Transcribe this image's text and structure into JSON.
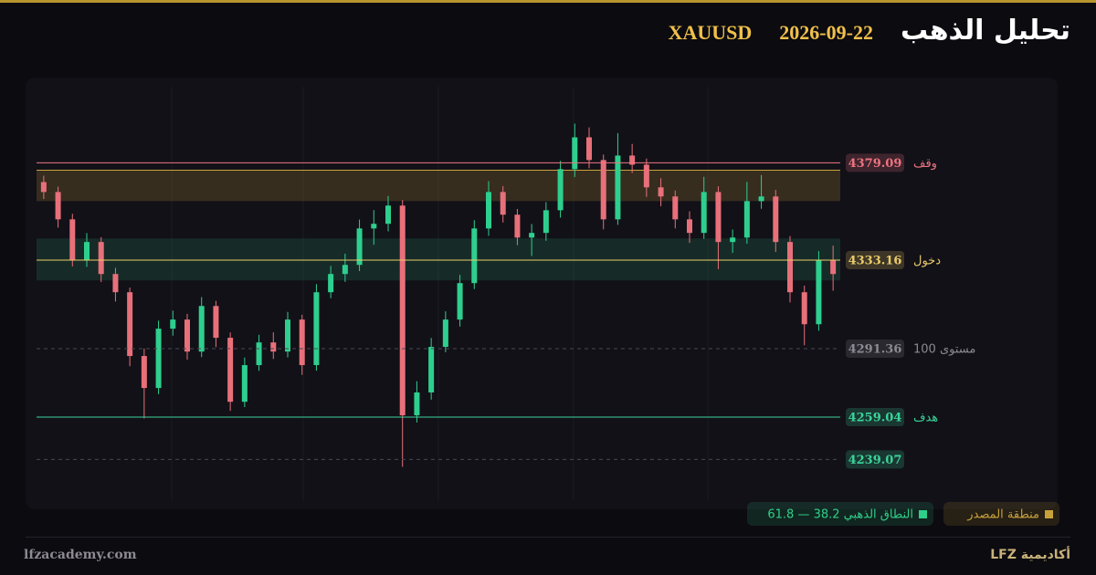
{
  "header": {
    "title": "تحليل الذهب",
    "date": "2026-09-22",
    "symbol": "XAUUSD"
  },
  "chart_data": {
    "type": "candlestick",
    "ylim": [
      4219,
      4415
    ],
    "up_color": "#2ecf8e",
    "down_color": "#e8707a",
    "open": [
      4370.0,
      4365.3,
      4352.4,
      4333.1,
      4341.7,
      4326.6,
      4318.0,
      4287.9,
      4272.8,
      4300.8,
      4305.1,
      4290.0,
      4311.5,
      4296.5,
      4266.3,
      4283.6,
      4294.3,
      4290.0,
      4305.1,
      4283.6,
      4318.0,
      4326.6,
      4330.9,
      4348.1,
      4350.3,
      4358.9,
      4259.9,
      4270.7,
      4292.2,
      4305.1,
      4322.3,
      4348.1,
      4365.3,
      4354.6,
      4343.8,
      4346.0,
      4356.7,
      4376.1,
      4391.1,
      4380.4,
      4352.4,
      4382.5,
      4378.2,
      4367.5,
      4363.2,
      4352.4,
      4346.0,
      4365.3,
      4341.7,
      4343.8,
      4361.0,
      4363.2,
      4341.7,
      4318.0,
      4302.9,
      4333.1
    ],
    "high": [
      4373.0,
      4367.8,
      4355.0,
      4345.9,
      4344.0,
      4329.5,
      4320.2,
      4291.4,
      4304.6,
      4309.3,
      4307.8,
      4315.7,
      4313.9,
      4299.0,
      4287.2,
      4297.9,
      4299.1,
      4308.7,
      4307.4,
      4321.8,
      4330.4,
      4336.2,
      4352.3,
      4356.8,
      4363.4,
      4361.5,
      4276.0,
      4296.4,
      4309.0,
      4326.2,
      4352.0,
      4370.4,
      4368.1,
      4357.3,
      4350.2,
      4360.5,
      4380.0,
      4397.6,
      4395.8,
      4383.0,
      4393.1,
      4388.0,
      4381.1,
      4371.8,
      4366.0,
      4356.2,
      4372.5,
      4368.0,
      4347.6,
      4370.1,
      4373.3,
      4366.3,
      4344.5,
      4321.1,
      4337.4,
      4340.0
    ],
    "low": [
      4362.0,
      4348.5,
      4330.2,
      4330.0,
      4322.8,
      4313.6,
      4283.1,
      4258.4,
      4269.9,
      4297.5,
      4286.2,
      4287.4,
      4292.1,
      4262.0,
      4263.8,
      4280.9,
      4286.5,
      4287.2,
      4279.0,
      4281.0,
      4315.2,
      4322.9,
      4328.0,
      4340.4,
      4346.7,
      4235.6,
      4256.5,
      4267.3,
      4289.7,
      4301.8,
      4319.5,
      4344.6,
      4350.9,
      4340.2,
      4335.1,
      4342.3,
      4353.2,
      4372.4,
      4376.5,
      4347.7,
      4349.8,
      4374.3,
      4363.0,
      4358.6,
      4348.1,
      4341.3,
      4343.2,
      4328.9,
      4336.6,
      4340.9,
      4357.4,
      4337.0,
      4313.2,
      4293.0,
      4299.8,
      4318.7
    ],
    "close": [
      4365.3,
      4352.4,
      4333.1,
      4341.7,
      4326.6,
      4318.0,
      4287.9,
      4272.8,
      4300.8,
      4305.1,
      4290.0,
      4311.5,
      4296.5,
      4266.3,
      4283.6,
      4294.3,
      4290.0,
      4305.1,
      4283.6,
      4318.0,
      4326.6,
      4330.9,
      4348.1,
      4350.3,
      4358.9,
      4259.9,
      4270.7,
      4292.2,
      4305.1,
      4322.3,
      4348.1,
      4365.3,
      4354.6,
      4343.8,
      4346.0,
      4356.7,
      4376.1,
      4391.1,
      4380.4,
      4352.4,
      4382.5,
      4378.2,
      4367.5,
      4363.2,
      4352.4,
      4346.0,
      4365.3,
      4341.7,
      4343.8,
      4361.0,
      4363.2,
      4341.7,
      4318.0,
      4302.9,
      4333.1,
      4326.6
    ],
    "zones": [
      {
        "name": "منطقة المصدر",
        "color": "#c9a13a",
        "range": [
          4361.0,
          4375.6
        ]
      },
      {
        "name": "النطاق الذهبي 38.2 — 61.8",
        "color": "#2fd08a",
        "range": [
          4323.6,
          4343.4
        ]
      }
    ],
    "levels": [
      {
        "name": "وقف",
        "value": 4379.09,
        "color": "#ee7480",
        "style": "solid"
      },
      {
        "name": "دخول",
        "value": 4333.16,
        "color": "#eccb6a",
        "style": "solid"
      },
      {
        "name": "مستوى 100",
        "value": 4291.36,
        "color": "#8c8a92",
        "style": "dashed"
      },
      {
        "name": "هدف",
        "value": 4259.04,
        "color": "#3ad49a",
        "style": "solid"
      },
      {
        "value": 4239.07,
        "color": "#3ad49a",
        "style": "dashed"
      }
    ]
  },
  "footer": {
    "site": "lfzacademy.com",
    "brand": "أكاديمية LFZ"
  }
}
